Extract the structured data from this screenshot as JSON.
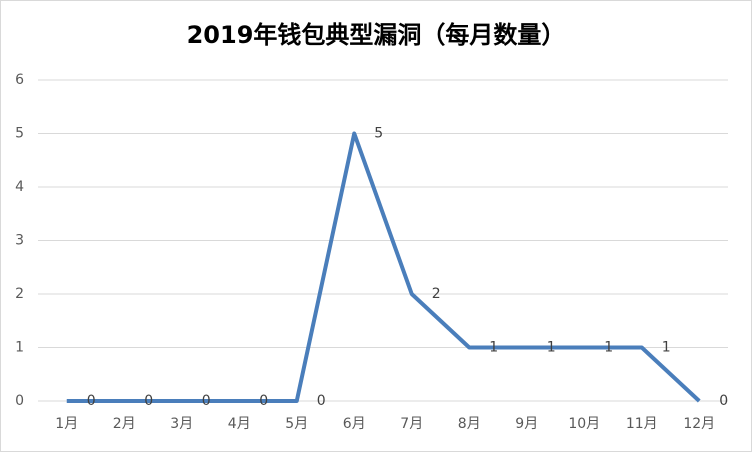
{
  "chart_data": {
    "type": "line",
    "title": "2019年钱包典型漏洞（每月数量）",
    "categories": [
      "1月",
      "2月",
      "3月",
      "4月",
      "5月",
      "6月",
      "7月",
      "8月",
      "9月",
      "10月",
      "11月",
      "12月"
    ],
    "series": [
      {
        "name": "每月数量",
        "color": "#4a7ebb",
        "values": [
          0,
          0,
          0,
          0,
          0,
          5,
          2,
          1,
          1,
          1,
          1,
          0
        ]
      }
    ],
    "ylim": [
      0,
      6
    ],
    "yticks": [
      0,
      1,
      2,
      3,
      4,
      5,
      6
    ],
    "grid": true,
    "data_labels": true
  }
}
